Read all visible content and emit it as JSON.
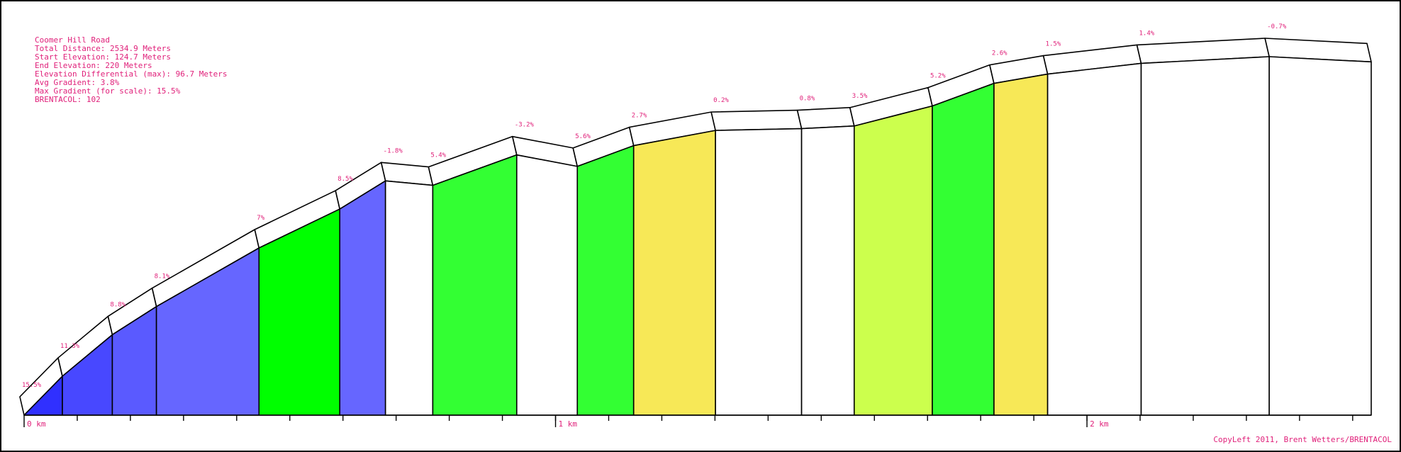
{
  "chart_data": {
    "type": "elevation-profile",
    "info": [
      "Coomer Hill Road",
      "Total Distance: 2534.9 Meters",
      "Start Elevation: 124.7 Meters",
      "End Elevation: 220 Meters",
      "Elevation Differential (max): 96.7 Meters",
      "Avg Gradient: 3.8%",
      "Max Gradient (for scale): 15.5%",
      "BRENTACOL: 102"
    ],
    "distance": [
      0,
      0.072,
      0.166,
      0.249,
      0.442,
      0.594,
      0.68,
      0.769,
      0.927,
      1.041,
      1.147,
      1.301,
      1.463,
      1.562,
      1.709,
      1.825,
      1.926,
      2.102,
      2.343,
      2.5349
    ],
    "elevation": [
      124.7,
      135.2,
      146.4,
      154.0,
      169.8,
      180.3,
      187.9,
      186.7,
      194.9,
      191.8,
      197.4,
      201.5,
      202.0,
      202.7,
      208.1,
      214.2,
      216.7,
      219.6,
      221.4,
      220
    ],
    "grades": [
      "15.5%",
      "11.3%",
      "8.8%",
      "8.1%",
      "7%",
      "8.5%",
      "-1.8%",
      "5.4%",
      "-3.2%",
      "5.6%",
      "2.7%",
      "0.2%",
      "0.8%",
      "3.5%",
      "5.2%",
      "2.6%",
      "1.5%",
      "1.4%",
      "-0.7%"
    ],
    "colors": [
      "#3030ff",
      "#4848ff",
      "#5a5aff",
      "#6666ff",
      "#00ff00",
      "#6666ff",
      "#ffffff",
      "#33ff33",
      "#ffffff",
      "#33ff33",
      "#f7e857",
      "#ffffff",
      "#ffffff",
      "#ccff4d",
      "#33ff33",
      "#f7e857",
      "#ffffff",
      "#ffffff",
      "#ffffff"
    ],
    "xlim": [
      0,
      2.5349
    ],
    "xticks": [
      {
        "value": 0,
        "label": "0 km"
      },
      {
        "value": 1,
        "label": "1 km"
      },
      {
        "value": 2,
        "label": "2 km"
      }
    ],
    "footer": "CopyLeft 2011, Brent Wetters/BRENTACOL"
  }
}
